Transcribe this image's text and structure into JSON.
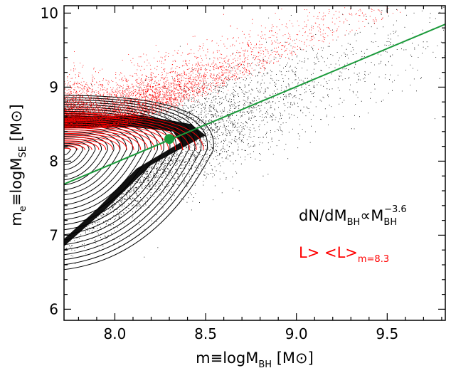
{
  "chart_data": {
    "type": "scatter",
    "xlabel": {
      "main": "m≡logM",
      "sub": "BH",
      "unit": " [M⊙]"
    },
    "ylabel": {
      "main": "m",
      "sub1": "e",
      "mid": "≡logM",
      "sub2": "SE",
      "unit": " [M⊙]"
    },
    "xlim": [
      7.72,
      9.82
    ],
    "ylim": [
      5.85,
      10.1
    ],
    "x_ticks": [
      8.0,
      8.5,
      9.0,
      9.5
    ],
    "y_ticks": [
      6,
      7,
      8,
      9,
      10
    ],
    "x_tick_labels": [
      "8.0",
      "8.5",
      "9.0",
      "9.5"
    ],
    "y_tick_labels": [
      "6",
      "7",
      "8",
      "9",
      "10"
    ],
    "fit_line": {
      "x": [
        7.72,
        9.82
      ],
      "y": [
        7.69,
        9.85
      ],
      "color": "#1a9a3a"
    },
    "marker": {
      "x": 8.3,
      "y": 8.3,
      "color": "#1a9a3a"
    },
    "mass_function": {
      "text": "dN/dM",
      "sub1": "BH",
      "mid": "∝M",
      "sub2": "BH",
      "sup": "−3.6"
    },
    "luminosity_cut": {
      "text": "L> <L>",
      "sub": "m=8.3",
      "color": "#ff0000"
    },
    "series_colors": {
      "all": "#000000",
      "bright": "#ff0000"
    },
    "grid": false
  }
}
